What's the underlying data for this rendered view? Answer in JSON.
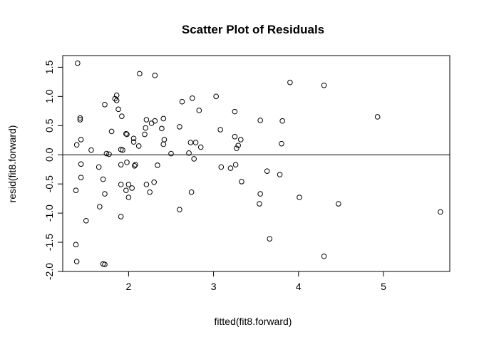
{
  "chart_data": {
    "type": "scatter",
    "title": "Scatter Plot of Residuals",
    "xlabel": "fitted(fit8.forward)",
    "ylabel": "resid(fit8.forward)",
    "xlim": [
      1.225,
      5.78
    ],
    "ylim": [
      -2.0,
      1.7
    ],
    "x_ticks": [
      2,
      3,
      4,
      5
    ],
    "x_tick_labels": [
      "2",
      "3",
      "4",
      "5"
    ],
    "y_ticks": [
      -2.0,
      -1.5,
      -1.0,
      -0.5,
      0.0,
      0.5,
      1.0,
      1.5
    ],
    "y_tick_labels": [
      "-2.0",
      "-1.5",
      "-1.0",
      "-0.5",
      "0.0",
      "0.5",
      "1.0",
      "1.5"
    ],
    "reference_line": {
      "y": 0
    },
    "grid": false,
    "marker": "open-circle",
    "points": [
      {
        "x": 1.4,
        "y": 1.57
      },
      {
        "x": 2.13,
        "y": 1.39
      },
      {
        "x": 2.31,
        "y": 1.36
      },
      {
        "x": 3.9,
        "y": 1.24
      },
      {
        "x": 4.3,
        "y": 1.19
      },
      {
        "x": 1.86,
        "y": 1.02
      },
      {
        "x": 3.03,
        "y": 1.0
      },
      {
        "x": 1.84,
        "y": 0.96
      },
      {
        "x": 2.75,
        "y": 0.97
      },
      {
        "x": 1.86,
        "y": 0.93
      },
      {
        "x": 1.72,
        "y": 0.86
      },
      {
        "x": 2.63,
        "y": 0.91
      },
      {
        "x": 1.88,
        "y": 0.78
      },
      {
        "x": 2.83,
        "y": 0.76
      },
      {
        "x": 3.25,
        "y": 0.74
      },
      {
        "x": 4.93,
        "y": 0.65
      },
      {
        "x": 1.92,
        "y": 0.66
      },
      {
        "x": 1.43,
        "y": 0.63
      },
      {
        "x": 1.43,
        "y": 0.6
      },
      {
        "x": 2.21,
        "y": 0.6
      },
      {
        "x": 2.31,
        "y": 0.58
      },
      {
        "x": 2.27,
        "y": 0.54
      },
      {
        "x": 2.41,
        "y": 0.62
      },
      {
        "x": 3.55,
        "y": 0.59
      },
      {
        "x": 3.81,
        "y": 0.58
      },
      {
        "x": 2.2,
        "y": 0.46
      },
      {
        "x": 2.39,
        "y": 0.45
      },
      {
        "x": 2.6,
        "y": 0.48
      },
      {
        "x": 3.08,
        "y": 0.43
      },
      {
        "x": 1.8,
        "y": 0.4
      },
      {
        "x": 1.97,
        "y": 0.36
      },
      {
        "x": 1.98,
        "y": 0.35
      },
      {
        "x": 2.19,
        "y": 0.35
      },
      {
        "x": 3.25,
        "y": 0.31
      },
      {
        "x": 2.06,
        "y": 0.28
      },
      {
        "x": 1.44,
        "y": 0.26
      },
      {
        "x": 2.42,
        "y": 0.26
      },
      {
        "x": 3.32,
        "y": 0.26
      },
      {
        "x": 2.06,
        "y": 0.22
      },
      {
        "x": 2.73,
        "y": 0.21
      },
      {
        "x": 2.79,
        "y": 0.21
      },
      {
        "x": 2.41,
        "y": 0.18
      },
      {
        "x": 1.39,
        "y": 0.17
      },
      {
        "x": 2.12,
        "y": 0.15
      },
      {
        "x": 3.29,
        "y": 0.16
      },
      {
        "x": 3.8,
        "y": 0.19
      },
      {
        "x": 2.85,
        "y": 0.13
      },
      {
        "x": 3.27,
        "y": 0.11
      },
      {
        "x": 1.91,
        "y": 0.09
      },
      {
        "x": 1.93,
        "y": 0.08
      },
      {
        "x": 1.56,
        "y": 0.08
      },
      {
        "x": 1.74,
        "y": 0.02
      },
      {
        "x": 1.77,
        "y": 0.01
      },
      {
        "x": 2.71,
        "y": 0.03
      },
      {
        "x": 2.5,
        "y": 0.02
      },
      {
        "x": 2.77,
        "y": -0.07
      },
      {
        "x": 1.98,
        "y": -0.13
      },
      {
        "x": 1.91,
        "y": -0.17
      },
      {
        "x": 2.08,
        "y": -0.17
      },
      {
        "x": 2.07,
        "y": -0.19
      },
      {
        "x": 2.34,
        "y": -0.18
      },
      {
        "x": 1.44,
        "y": -0.16
      },
      {
        "x": 3.26,
        "y": -0.17
      },
      {
        "x": 1.65,
        "y": -0.21
      },
      {
        "x": 3.09,
        "y": -0.21
      },
      {
        "x": 3.2,
        "y": -0.23
      },
      {
        "x": 3.63,
        "y": -0.28
      },
      {
        "x": 3.78,
        "y": -0.34
      },
      {
        "x": 1.44,
        "y": -0.39
      },
      {
        "x": 1.7,
        "y": -0.42
      },
      {
        "x": 2.3,
        "y": -0.47
      },
      {
        "x": 3.33,
        "y": -0.46
      },
      {
        "x": 1.91,
        "y": -0.51
      },
      {
        "x": 2.0,
        "y": -0.51
      },
      {
        "x": 2.21,
        "y": -0.51
      },
      {
        "x": 2.04,
        "y": -0.57
      },
      {
        "x": 1.97,
        "y": -0.61
      },
      {
        "x": 1.38,
        "y": -0.61
      },
      {
        "x": 2.25,
        "y": -0.64
      },
      {
        "x": 2.74,
        "y": -0.64
      },
      {
        "x": 1.72,
        "y": -0.67
      },
      {
        "x": 3.55,
        "y": -0.67
      },
      {
        "x": 2.0,
        "y": -0.73
      },
      {
        "x": 4.01,
        "y": -0.73
      },
      {
        "x": 3.54,
        "y": -0.84
      },
      {
        "x": 4.47,
        "y": -0.84
      },
      {
        "x": 1.66,
        "y": -0.89
      },
      {
        "x": 2.6,
        "y": -0.94
      },
      {
        "x": 5.67,
        "y": -0.98
      },
      {
        "x": 1.91,
        "y": -1.06
      },
      {
        "x": 1.5,
        "y": -1.13
      },
      {
        "x": 3.66,
        "y": -1.44
      },
      {
        "x": 1.38,
        "y": -1.54
      },
      {
        "x": 4.3,
        "y": -1.74
      },
      {
        "x": 1.39,
        "y": -1.83
      },
      {
        "x": 1.7,
        "y": -1.87
      },
      {
        "x": 1.72,
        "y": -1.88
      }
    ]
  }
}
